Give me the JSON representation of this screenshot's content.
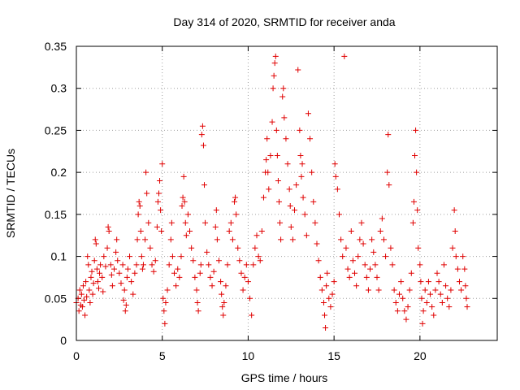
{
  "chart_data": {
    "type": "scatter",
    "title": "Day 314 of 2020, SRMTID for receiver anda",
    "xlabel": "GPS time / hours",
    "ylabel": "SRMTID / TECUs",
    "xlim": [
      0,
      24.5
    ],
    "ylim": [
      0,
      0.35
    ],
    "xticks": [
      0,
      5,
      10,
      15,
      20
    ],
    "xtick_labels": [
      "0",
      "5",
      "10",
      "15",
      "20"
    ],
    "yticks": [
      0,
      0.05,
      0.1,
      0.15,
      0.2,
      0.25,
      0.3,
      0.35
    ],
    "ytick_labels": [
      "0",
      "0.05",
      "0.1",
      "0.15",
      "0.2",
      "0.25",
      "0.3",
      "0.35"
    ],
    "grid": true,
    "marker": "plus",
    "color": "#e00000",
    "series": [
      {
        "name": "SRMTID",
        "points": [
          [
            0.0,
            0.045
          ],
          [
            0.1,
            0.05
          ],
          [
            0.15,
            0.035
          ],
          [
            0.2,
            0.06
          ],
          [
            0.25,
            0.042
          ],
          [
            0.3,
            0.055
          ],
          [
            0.35,
            0.04
          ],
          [
            0.4,
            0.065
          ],
          [
            0.45,
            0.048
          ],
          [
            0.5,
            0.03
          ],
          [
            0.55,
            0.07
          ],
          [
            0.6,
            0.052
          ],
          [
            0.65,
            0.1
          ],
          [
            0.7,
            0.09
          ],
          [
            0.75,
            0.06
          ],
          [
            0.8,
            0.045
          ],
          [
            0.85,
            0.075
          ],
          [
            0.9,
            0.082
          ],
          [
            0.95,
            0.055
          ],
          [
            1.0,
            0.068
          ],
          [
            1.05,
            0.095
          ],
          [
            1.1,
            0.12
          ],
          [
            1.15,
            0.115
          ],
          [
            1.2,
            0.085
          ],
          [
            1.25,
            0.07
          ],
          [
            1.3,
            0.062
          ],
          [
            1.35,
            0.08
          ],
          [
            1.4,
            0.09
          ],
          [
            1.5,
            0.075
          ],
          [
            1.55,
            0.058
          ],
          [
            1.6,
            0.1
          ],
          [
            1.7,
            0.088
          ],
          [
            1.8,
            0.11
          ],
          [
            1.85,
            0.135
          ],
          [
            1.9,
            0.13
          ],
          [
            2.0,
            0.09
          ],
          [
            2.05,
            0.078
          ],
          [
            2.1,
            0.065
          ],
          [
            2.2,
            0.085
          ],
          [
            2.3,
            0.105
          ],
          [
            2.35,
            0.12
          ],
          [
            2.4,
            0.095
          ],
          [
            2.5,
            0.08
          ],
          [
            2.6,
            0.068
          ],
          [
            2.7,
            0.09
          ],
          [
            2.75,
            0.048
          ],
          [
            2.8,
            0.06
          ],
          [
            2.85,
            0.035
          ],
          [
            2.9,
            0.042
          ],
          [
            2.95,
            0.075
          ],
          [
            3.0,
            0.085
          ],
          [
            3.1,
            0.1
          ],
          [
            3.2,
            0.07
          ],
          [
            3.3,
            0.055
          ],
          [
            3.4,
            0.08
          ],
          [
            3.5,
            0.09
          ],
          [
            3.55,
            0.12
          ],
          [
            3.6,
            0.15
          ],
          [
            3.65,
            0.165
          ],
          [
            3.7,
            0.16
          ],
          [
            3.75,
            0.13
          ],
          [
            3.8,
            0.1
          ],
          [
            3.85,
            0.085
          ],
          [
            3.9,
            0.09
          ],
          [
            4.0,
            0.12
          ],
          [
            4.05,
            0.2
          ],
          [
            4.1,
            0.175
          ],
          [
            4.2,
            0.14
          ],
          [
            4.3,
            0.11
          ],
          [
            4.4,
            0.09
          ],
          [
            4.5,
            0.082
          ],
          [
            4.6,
            0.095
          ],
          [
            4.7,
            0.135
          ],
          [
            4.75,
            0.165
          ],
          [
            4.8,
            0.175
          ],
          [
            4.85,
            0.19
          ],
          [
            4.9,
            0.155
          ],
          [
            4.95,
            0.13
          ],
          [
            5.0,
            0.21
          ],
          [
            5.05,
            0.05
          ],
          [
            5.1,
            0.035
          ],
          [
            5.15,
            0.02
          ],
          [
            5.2,
            0.045
          ],
          [
            5.3,
            0.06
          ],
          [
            5.4,
            0.09
          ],
          [
            5.5,
            0.12
          ],
          [
            5.55,
            0.14
          ],
          [
            5.6,
            0.1
          ],
          [
            5.7,
            0.08
          ],
          [
            5.8,
            0.065
          ],
          [
            5.9,
            0.085
          ],
          [
            6.0,
            0.075
          ],
          [
            6.1,
            0.1
          ],
          [
            6.15,
            0.16
          ],
          [
            6.2,
            0.17
          ],
          [
            6.25,
            0.195
          ],
          [
            6.3,
            0.165
          ],
          [
            6.35,
            0.14
          ],
          [
            6.4,
            0.125
          ],
          [
            6.5,
            0.15
          ],
          [
            6.6,
            0.13
          ],
          [
            6.7,
            0.11
          ],
          [
            6.8,
            0.095
          ],
          [
            6.9,
            0.075
          ],
          [
            7.0,
            0.06
          ],
          [
            7.05,
            0.045
          ],
          [
            7.1,
            0.035
          ],
          [
            7.2,
            0.08
          ],
          [
            7.25,
            0.09
          ],
          [
            7.3,
            0.245
          ],
          [
            7.35,
            0.255
          ],
          [
            7.4,
            0.232
          ],
          [
            7.45,
            0.185
          ],
          [
            7.5,
            0.14
          ],
          [
            7.6,
            0.105
          ],
          [
            7.7,
            0.09
          ],
          [
            7.8,
            0.075
          ],
          [
            7.9,
            0.065
          ],
          [
            8.0,
            0.082
          ],
          [
            8.1,
            0.135
          ],
          [
            8.15,
            0.155
          ],
          [
            8.2,
            0.12
          ],
          [
            8.3,
            0.095
          ],
          [
            8.4,
            0.07
          ],
          [
            8.45,
            0.055
          ],
          [
            8.5,
            0.04
          ],
          [
            8.55,
            0.03
          ],
          [
            8.6,
            0.045
          ],
          [
            8.7,
            0.065
          ],
          [
            8.8,
            0.09
          ],
          [
            8.9,
            0.13
          ],
          [
            9.0,
            0.14
          ],
          [
            9.1,
            0.12
          ],
          [
            9.2,
            0.165
          ],
          [
            9.25,
            0.17
          ],
          [
            9.3,
            0.15
          ],
          [
            9.4,
            0.11
          ],
          [
            9.5,
            0.095
          ],
          [
            9.6,
            0.08
          ],
          [
            9.7,
            0.06
          ],
          [
            9.8,
            0.075
          ],
          [
            9.9,
            0.09
          ],
          [
            10.0,
            0.07
          ],
          [
            10.1,
            0.05
          ],
          [
            10.2,
            0.03
          ],
          [
            10.3,
            0.09
          ],
          [
            10.4,
            0.11
          ],
          [
            10.5,
            0.125
          ],
          [
            10.6,
            0.1
          ],
          [
            10.7,
            0.095
          ],
          [
            10.8,
            0.13
          ],
          [
            10.9,
            0.17
          ],
          [
            11.0,
            0.2
          ],
          [
            11.05,
            0.215
          ],
          [
            11.1,
            0.24
          ],
          [
            11.15,
            0.2
          ],
          [
            11.2,
            0.18
          ],
          [
            11.3,
            0.22
          ],
          [
            11.4,
            0.26
          ],
          [
            11.45,
            0.3
          ],
          [
            11.5,
            0.315
          ],
          [
            11.55,
            0.33
          ],
          [
            11.6,
            0.338
          ],
          [
            11.65,
            0.25
          ],
          [
            11.7,
            0.22
          ],
          [
            11.75,
            0.19
          ],
          [
            11.8,
            0.165
          ],
          [
            11.85,
            0.14
          ],
          [
            11.9,
            0.12
          ],
          [
            12.0,
            0.29
          ],
          [
            12.05,
            0.3
          ],
          [
            12.1,
            0.265
          ],
          [
            12.2,
            0.24
          ],
          [
            12.3,
            0.21
          ],
          [
            12.4,
            0.18
          ],
          [
            12.45,
            0.16
          ],
          [
            12.5,
            0.135
          ],
          [
            12.6,
            0.12
          ],
          [
            12.7,
            0.155
          ],
          [
            12.8,
            0.185
          ],
          [
            12.9,
            0.322
          ],
          [
            13.0,
            0.25
          ],
          [
            13.05,
            0.22
          ],
          [
            13.1,
            0.195
          ],
          [
            13.15,
            0.21
          ],
          [
            13.2,
            0.17
          ],
          [
            13.3,
            0.15
          ],
          [
            13.4,
            0.125
          ],
          [
            13.5,
            0.27
          ],
          [
            13.6,
            0.24
          ],
          [
            13.7,
            0.2
          ],
          [
            13.8,
            0.165
          ],
          [
            13.9,
            0.14
          ],
          [
            14.0,
            0.115
          ],
          [
            14.1,
            0.095
          ],
          [
            14.2,
            0.075
          ],
          [
            14.3,
            0.06
          ],
          [
            14.4,
            0.045
          ],
          [
            14.45,
            0.03
          ],
          [
            14.5,
            0.015
          ],
          [
            14.55,
            0.065
          ],
          [
            14.6,
            0.08
          ],
          [
            14.7,
            0.05
          ],
          [
            14.8,
            0.04
          ],
          [
            14.9,
            0.055
          ],
          [
            15.0,
            0.07
          ],
          [
            15.05,
            0.21
          ],
          [
            15.1,
            0.195
          ],
          [
            15.2,
            0.18
          ],
          [
            15.3,
            0.15
          ],
          [
            15.4,
            0.12
          ],
          [
            15.5,
            0.1
          ],
          [
            15.6,
            0.338
          ],
          [
            15.7,
            0.11
          ],
          [
            15.8,
            0.085
          ],
          [
            15.9,
            0.075
          ],
          [
            16.0,
            0.13
          ],
          [
            16.1,
            0.095
          ],
          [
            16.2,
            0.08
          ],
          [
            16.3,
            0.065
          ],
          [
            16.4,
            0.1
          ],
          [
            16.5,
            0.12
          ],
          [
            16.6,
            0.14
          ],
          [
            16.7,
            0.115
          ],
          [
            16.8,
            0.09
          ],
          [
            16.9,
            0.075
          ],
          [
            17.0,
            0.06
          ],
          [
            17.1,
            0.085
          ],
          [
            17.2,
            0.12
          ],
          [
            17.3,
            0.105
          ],
          [
            17.4,
            0.09
          ],
          [
            17.5,
            0.075
          ],
          [
            17.6,
            0.06
          ],
          [
            17.7,
            0.13
          ],
          [
            17.8,
            0.145
          ],
          [
            17.9,
            0.12
          ],
          [
            18.0,
            0.1
          ],
          [
            18.1,
            0.2
          ],
          [
            18.15,
            0.245
          ],
          [
            18.2,
            0.185
          ],
          [
            18.3,
            0.11
          ],
          [
            18.4,
            0.09
          ],
          [
            18.5,
            0.06
          ],
          [
            18.6,
            0.045
          ],
          [
            18.7,
            0.035
          ],
          [
            18.8,
            0.055
          ],
          [
            18.9,
            0.07
          ],
          [
            19.0,
            0.05
          ],
          [
            19.1,
            0.035
          ],
          [
            19.2,
            0.025
          ],
          [
            19.3,
            0.04
          ],
          [
            19.4,
            0.06
          ],
          [
            19.5,
            0.08
          ],
          [
            19.6,
            0.14
          ],
          [
            19.65,
            0.165
          ],
          [
            19.7,
            0.22
          ],
          [
            19.75,
            0.25
          ],
          [
            19.8,
            0.2
          ],
          [
            19.85,
            0.155
          ],
          [
            19.9,
            0.11
          ],
          [
            20.0,
            0.09
          ],
          [
            20.05,
            0.07
          ],
          [
            20.1,
            0.05
          ],
          [
            20.15,
            0.02
          ],
          [
            20.2,
            0.035
          ],
          [
            20.3,
            0.06
          ],
          [
            20.4,
            0.045
          ],
          [
            20.5,
            0.07
          ],
          [
            20.6,
            0.055
          ],
          [
            20.7,
            0.04
          ],
          [
            20.8,
            0.03
          ],
          [
            20.9,
            0.06
          ],
          [
            21.0,
            0.08
          ],
          [
            21.1,
            0.07
          ],
          [
            21.2,
            0.055
          ],
          [
            21.3,
            0.045
          ],
          [
            21.4,
            0.09
          ],
          [
            21.5,
            0.065
          ],
          [
            21.6,
            0.05
          ],
          [
            21.7,
            0.04
          ],
          [
            21.8,
            0.06
          ],
          [
            21.9,
            0.11
          ],
          [
            22.0,
            0.155
          ],
          [
            22.05,
            0.13
          ],
          [
            22.1,
            0.1
          ],
          [
            22.2,
            0.085
          ],
          [
            22.3,
            0.07
          ],
          [
            22.4,
            0.06
          ],
          [
            22.5,
            0.1
          ],
          [
            22.6,
            0.085
          ],
          [
            22.65,
            0.065
          ],
          [
            22.7,
            0.05
          ],
          [
            22.75,
            0.04
          ]
        ]
      }
    ]
  }
}
